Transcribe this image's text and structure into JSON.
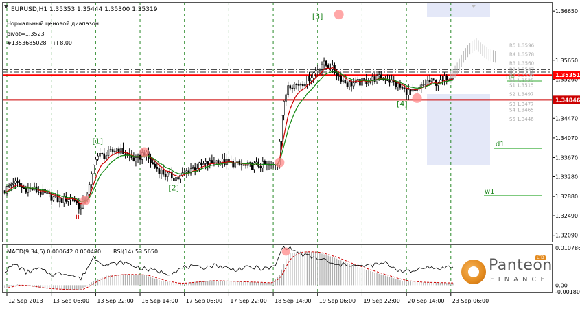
{
  "header": {
    "symbol_line": "EURUSD,H1  1.35353 1.35444 1.35300 1.35319",
    "indicator_line1": "Нормальный ценовой диапазон",
    "indicator_line2": "pivot=1.3523",
    "indicator_line3": "#1353685028 ",
    "indicator_line3b": "ıll 8,00"
  },
  "chart_data": {
    "type": "candlestick",
    "price_axis": {
      "ticks": [
        1.3665,
        1.3565,
        1.3526,
        1.3447,
        1.3407,
        1.3367,
        1.3328,
        1.3288,
        1.3249,
        1.3209
      ],
      "tick_labels": [
        "1.36650",
        "1.35650",
        "1.35260",
        "1.34470",
        "1.34070",
        "1.33670",
        "1.33280",
        "1.32880",
        "1.32490",
        "1.32090"
      ],
      "ylim": [
        1.3196,
        1.3682
      ]
    },
    "current_price": {
      "value": 1.35351,
      "label": "1.35351",
      "color": "#ff0000"
    },
    "levels": [
      {
        "value": 1.35351,
        "label": "1.35351",
        "color": "#ff0000"
      },
      {
        "value": 1.34846,
        "label": "1.34846",
        "color": "#cc0000"
      }
    ],
    "dashed_levels": [
      1.3546,
      1.3541
    ],
    "pivot_side_labels": [
      {
        "label": "R5 1.3596",
        "value": 1.3596
      },
      {
        "label": "R4 1.3578",
        "value": 1.3578
      },
      {
        "label": "R3 1.3560",
        "value": 1.356
      },
      {
        "label": "R2 1.3547",
        "value": 1.3547
      },
      {
        "label": "R1 1.3536",
        "value": 1.3536
      },
      {
        "label": "S1 1.3525",
        "value": 1.3525
      },
      {
        "label": "S1 1.3515",
        "value": 1.3515
      },
      {
        "label": "S2 1.3497",
        "value": 1.3497
      },
      {
        "label": "S3 1.3477",
        "value": 1.3477
      },
      {
        "label": "S4 1.3465",
        "value": 1.3465
      },
      {
        "label": "S5 1.3446",
        "value": 1.3446
      }
    ],
    "level_tags": [
      {
        "label": "h4",
        "value": 1.3534,
        "color": "#228822"
      },
      {
        "label": "d1",
        "value": 1.3397,
        "color": "#228822"
      },
      {
        "label": "w1",
        "value": 1.3301,
        "color": "#228822"
      }
    ],
    "wave_labels": [
      {
        "label": "[1]",
        "bar": 44,
        "value": 1.3395,
        "color": "#228822"
      },
      {
        "label": "[2]",
        "bar": 80,
        "value": 1.33,
        "color": "#228822"
      },
      {
        "label": "[3]",
        "bar": 148,
        "value": 1.3649,
        "color": "#228822"
      },
      {
        "label": "[4]",
        "bar": 188,
        "value": 1.3471,
        "color": "#228822"
      },
      {
        "label": "ii",
        "bar": 36,
        "value": 1.3242,
        "color": "#cc0000"
      }
    ],
    "pivot_points": [
      {
        "bar": 38,
        "value": 1.328
      },
      {
        "bar": 66,
        "value": 1.3378
      },
      {
        "bar": 130,
        "value": 1.3357
      },
      {
        "bar": 158,
        "value": 1.3658
      },
      {
        "bar": 195,
        "value": 1.3488
      }
    ],
    "time_labels": [
      "12 Sep 2013",
      "13 Sep 06:00",
      "13 Sep 22:00",
      "16 Sep 14:00",
      "17 Sep 06:00",
      "17 Sep 22:00",
      "18 Sep 14:00",
      "19 Sep 06:00",
      "19 Sep 22:00",
      "20 Sep 14:00",
      "23 Sep 06:00"
    ],
    "time_label_bars": [
      0,
      21,
      42,
      63,
      84,
      105,
      126,
      147,
      168,
      189,
      210
    ],
    "n_bars": 213,
    "close_anchors": [
      [
        0,
        1.33
      ],
      [
        4,
        1.3318
      ],
      [
        8,
        1.3305
      ],
      [
        14,
        1.3302
      ],
      [
        20,
        1.329
      ],
      [
        26,
        1.328
      ],
      [
        32,
        1.3286
      ],
      [
        36,
        1.3262
      ],
      [
        40,
        1.3308
      ],
      [
        43,
        1.337
      ],
      [
        48,
        1.3372
      ],
      [
        53,
        1.3385
      ],
      [
        58,
        1.3373
      ],
      [
        62,
        1.336
      ],
      [
        66,
        1.3378
      ],
      [
        70,
        1.3352
      ],
      [
        76,
        1.3332
      ],
      [
        82,
        1.3325
      ],
      [
        88,
        1.3345
      ],
      [
        94,
        1.3352
      ],
      [
        100,
        1.336
      ],
      [
        108,
        1.3355
      ],
      [
        114,
        1.3349
      ],
      [
        120,
        1.3352
      ],
      [
        126,
        1.3349
      ],
      [
        129,
        1.3357
      ],
      [
        131,
        1.3455
      ],
      [
        134,
        1.3517
      ],
      [
        138,
        1.3515
      ],
      [
        142,
        1.3522
      ],
      [
        146,
        1.3538
      ],
      [
        150,
        1.3558
      ],
      [
        154,
        1.3552
      ],
      [
        158,
        1.3533
      ],
      [
        162,
        1.3517
      ],
      [
        168,
        1.352
      ],
      [
        174,
        1.3527
      ],
      [
        180,
        1.353
      ],
      [
        186,
        1.3512
      ],
      [
        190,
        1.3502
      ],
      [
        194,
        1.3498
      ],
      [
        200,
        1.3522
      ],
      [
        206,
        1.3519
      ],
      [
        210,
        1.3535
      ]
    ],
    "ghost_anchors": [
      [
        211,
        1.353
      ],
      [
        214,
        1.3548
      ],
      [
        217,
        1.3572
      ],
      [
        220,
        1.3589
      ],
      [
        223,
        1.3598
      ],
      [
        226,
        1.3586
      ],
      [
        229,
        1.3576
      ],
      [
        232,
        1.3572
      ]
    ],
    "macd": {
      "label": "MACD(9,34,5) 0.000642 0.000480",
      "rsi_label": "RSI(14) 53.5650",
      "axis_labels": [
        "0.010786",
        "0.00",
        "-0.001808"
      ],
      "axis_values": [
        0.010786,
        0.0,
        -0.001808
      ],
      "hist_anchors": [
        [
          0,
          -0.0008
        ],
        [
          6,
          0.0002
        ],
        [
          12,
          -0.0003
        ],
        [
          20,
          -0.001
        ],
        [
          28,
          -0.0012
        ],
        [
          36,
          -0.0013
        ],
        [
          42,
          0.0012
        ],
        [
          48,
          0.0026
        ],
        [
          56,
          0.003
        ],
        [
          66,
          0.0028
        ],
        [
          74,
          0.0012
        ],
        [
          82,
          0.0004
        ],
        [
          90,
          0.0009
        ],
        [
          98,
          0.0013
        ],
        [
          108,
          0.001
        ],
        [
          118,
          0.0008
        ],
        [
          126,
          0.0006
        ],
        [
          130,
          0.0028
        ],
        [
          134,
          0.0086
        ],
        [
          140,
          0.0093
        ],
        [
          148,
          0.009
        ],
        [
          156,
          0.0075
        ],
        [
          164,
          0.0056
        ],
        [
          172,
          0.004
        ],
        [
          180,
          0.0026
        ],
        [
          188,
          0.0012
        ],
        [
          196,
          0.0008
        ],
        [
          204,
          0.0007
        ],
        [
          210,
          0.0006
        ]
      ],
      "rsi_anchors": [
        [
          0,
          45
        ],
        [
          5,
          60
        ],
        [
          10,
          42
        ],
        [
          16,
          50
        ],
        [
          22,
          38
        ],
        [
          30,
          40
        ],
        [
          36,
          28
        ],
        [
          42,
          75
        ],
        [
          48,
          58
        ],
        [
          56,
          64
        ],
        [
          64,
          52
        ],
        [
          70,
          46
        ],
        [
          78,
          40
        ],
        [
          86,
          55
        ],
        [
          92,
          52
        ],
        [
          100,
          58
        ],
        [
          108,
          48
        ],
        [
          116,
          53
        ],
        [
          124,
          50
        ],
        [
          128,
          55
        ],
        [
          131,
          94
        ],
        [
          134,
          97
        ],
        [
          140,
          82
        ],
        [
          146,
          74
        ],
        [
          152,
          68
        ],
        [
          156,
          57
        ],
        [
          162,
          60
        ],
        [
          168,
          55
        ],
        [
          174,
          58
        ],
        [
          180,
          62
        ],
        [
          186,
          48
        ],
        [
          192,
          42
        ],
        [
          198,
          55
        ],
        [
          204,
          50
        ],
        [
          210,
          54
        ]
      ]
    }
  }
}
